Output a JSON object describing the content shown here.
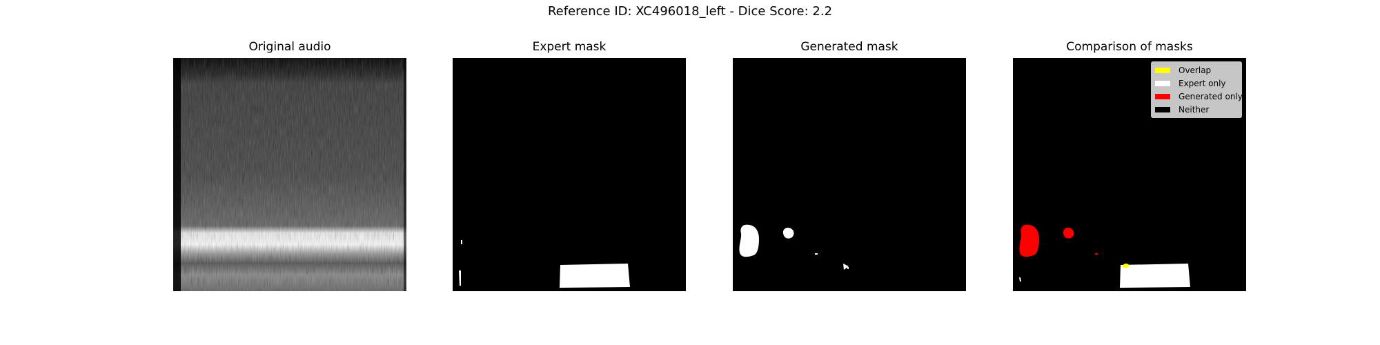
{
  "figure": {
    "suptitle": "Reference ID: XC496018_left - Dice Score: 2.2"
  },
  "panels": [
    {
      "id": "original",
      "title": "Original audio"
    },
    {
      "id": "expert",
      "title": "Expert mask"
    },
    {
      "id": "generated",
      "title": "Generated mask"
    },
    {
      "id": "comparison",
      "title": "Comparison of masks"
    }
  ],
  "legend": {
    "entries": [
      {
        "label": "Overlap",
        "color": "#ffff00"
      },
      {
        "label": "Expert only",
        "color": "#ffffff"
      },
      {
        "label": "Generated only",
        "color": "#ff0000"
      },
      {
        "label": "Neither",
        "color": "#000000"
      }
    ]
  }
}
